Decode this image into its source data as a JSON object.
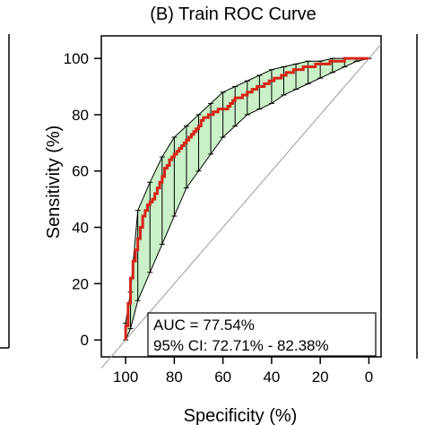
{
  "chart_data": {
    "type": "line",
    "title": "(B) Train ROC Curve",
    "xlabel": "Specificity (%)",
    "ylabel": "Sensitivity (%)",
    "xlim": [
      100,
      0
    ],
    "ylim": [
      0,
      100
    ],
    "x_ticks": [
      100,
      80,
      60,
      40,
      20,
      0
    ],
    "y_ticks": [
      0,
      20,
      40,
      60,
      80,
      100
    ],
    "x_tick_labels": [
      "100",
      "80",
      "60",
      "40",
      "20",
      "0"
    ],
    "y_tick_labels": [
      "0",
      "20",
      "40",
      "60",
      "80",
      "100"
    ],
    "grid": false,
    "annotation": {
      "auc": "AUC = 77.54%",
      "ci": "95% CI: 72.71% - 82.38%"
    },
    "reference_line": {
      "from": [
        100,
        0
      ],
      "to": [
        0,
        100
      ]
    },
    "series": [
      {
        "values_x": [
          100,
          100,
          99,
          99,
          98,
          98,
          97,
          96,
          95,
          94,
          93,
          92,
          91,
          90,
          89,
          88,
          87,
          86,
          85,
          84,
          83,
          82,
          81,
          80,
          79,
          78,
          77,
          76,
          75,
          74,
          73,
          72,
          71,
          70,
          69,
          68,
          67,
          66,
          65,
          64,
          63,
          62,
          61,
          60,
          59,
          58,
          57,
          56,
          55,
          54,
          53,
          52,
          51,
          50,
          49,
          48,
          47,
          46,
          45,
          44,
          43,
          42,
          41,
          40,
          39,
          38,
          37,
          36,
          35,
          34,
          33,
          32,
          31,
          30,
          29,
          28,
          27,
          26,
          25,
          24,
          23,
          22,
          21,
          20,
          18,
          16,
          14,
          12,
          10,
          8,
          6,
          4,
          2,
          0
        ],
        "values_y": [
          0,
          5,
          9,
          13,
          18,
          22,
          28,
          32,
          36,
          40,
          44,
          46,
          48,
          49,
          50,
          52,
          54,
          56,
          58,
          61,
          62,
          64,
          65,
          66,
          67,
          68,
          69,
          70,
          71,
          72,
          73,
          74,
          75,
          76,
          78,
          79,
          79,
          80,
          80,
          81,
          81,
          82,
          82,
          82,
          82,
          83,
          84,
          85,
          86,
          86,
          86,
          87,
          87,
          88,
          88,
          89,
          89,
          90,
          90,
          90,
          91,
          91,
          92,
          92,
          93,
          93,
          93,
          94,
          94,
          95,
          95,
          95,
          96,
          96,
          96,
          96,
          97,
          97,
          97,
          97,
          97,
          98,
          98,
          98,
          98,
          99,
          99,
          99,
          100,
          100,
          100,
          100,
          100,
          100
        ]
      }
    ],
    "ci_band": {
      "x": [
        100,
        98,
        95,
        90,
        85,
        80,
        75,
        70,
        65,
        60,
        55,
        50,
        45,
        40,
        35,
        30,
        25,
        20,
        15,
        10,
        5,
        0
      ],
      "upper": [
        6,
        17,
        46,
        56,
        65,
        72,
        76,
        80,
        84,
        88,
        90,
        92,
        94,
        96,
        97,
        98,
        99,
        99,
        100,
        100,
        100,
        100
      ],
      "lower": [
        0,
        4,
        14,
        24,
        34,
        44,
        54,
        60,
        66,
        72,
        76,
        80,
        82,
        84,
        87,
        89,
        91,
        93,
        95,
        97,
        99,
        100
      ]
    },
    "colors": {
      "curve": "#d62418",
      "band_fill": "#c9f0c6",
      "band_edge": "#000000",
      "reference": "#9a9a9a"
    }
  }
}
